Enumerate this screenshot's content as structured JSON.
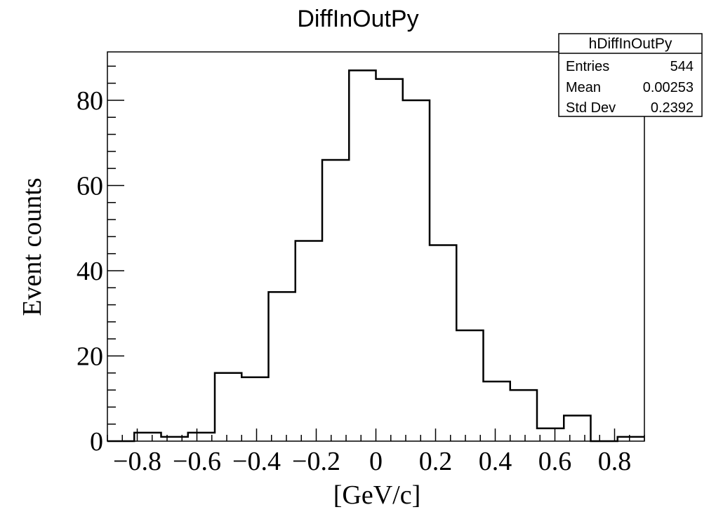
{
  "chart_data": {
    "type": "histogram",
    "title": "DiffInOutPy",
    "xlabel": "[GeV/c]",
    "ylabel": "Event counts",
    "xlim": [
      -0.9,
      0.9
    ],
    "ylim": [
      0,
      91.35
    ],
    "bin_edges": [
      -0.9,
      -0.81,
      -0.72,
      -0.63,
      -0.54,
      -0.45,
      -0.36,
      -0.27,
      -0.18,
      -0.09,
      0,
      0.09,
      0.18,
      0.27,
      0.36,
      0.45,
      0.54,
      0.63,
      0.72,
      0.81,
      0.9
    ],
    "counts": [
      0,
      2,
      1,
      2,
      16,
      15,
      35,
      47,
      66,
      87,
      85,
      80,
      46,
      26,
      14,
      12,
      3,
      6,
      0,
      1
    ],
    "xticks": [
      {
        "value": -0.8,
        "label": "−0.8"
      },
      {
        "value": -0.6,
        "label": "−0.6"
      },
      {
        "value": -0.4,
        "label": "−0.4"
      },
      {
        "value": -0.2,
        "label": "−0.2"
      },
      {
        "value": 0,
        "label": "0"
      },
      {
        "value": 0.2,
        "label": "0.2"
      },
      {
        "value": 0.4,
        "label": "0.4"
      },
      {
        "value": 0.6,
        "label": "0.6"
      },
      {
        "value": 0.8,
        "label": "0.8"
      }
    ],
    "yticks": [
      {
        "value": 0,
        "label": "0"
      },
      {
        "value": 20,
        "label": "20"
      },
      {
        "value": 40,
        "label": "40"
      },
      {
        "value": 60,
        "label": "60"
      },
      {
        "value": 80,
        "label": "80"
      }
    ],
    "stats_box": {
      "name": "hDiffInOutPy",
      "rows": [
        {
          "label": "Entries",
          "value": "544"
        },
        {
          "label": "Mean",
          "value": "0.00253"
        },
        {
          "label": "Std Dev",
          "value": "0.2392"
        }
      ]
    },
    "grid": false,
    "line_color": "#000000"
  }
}
